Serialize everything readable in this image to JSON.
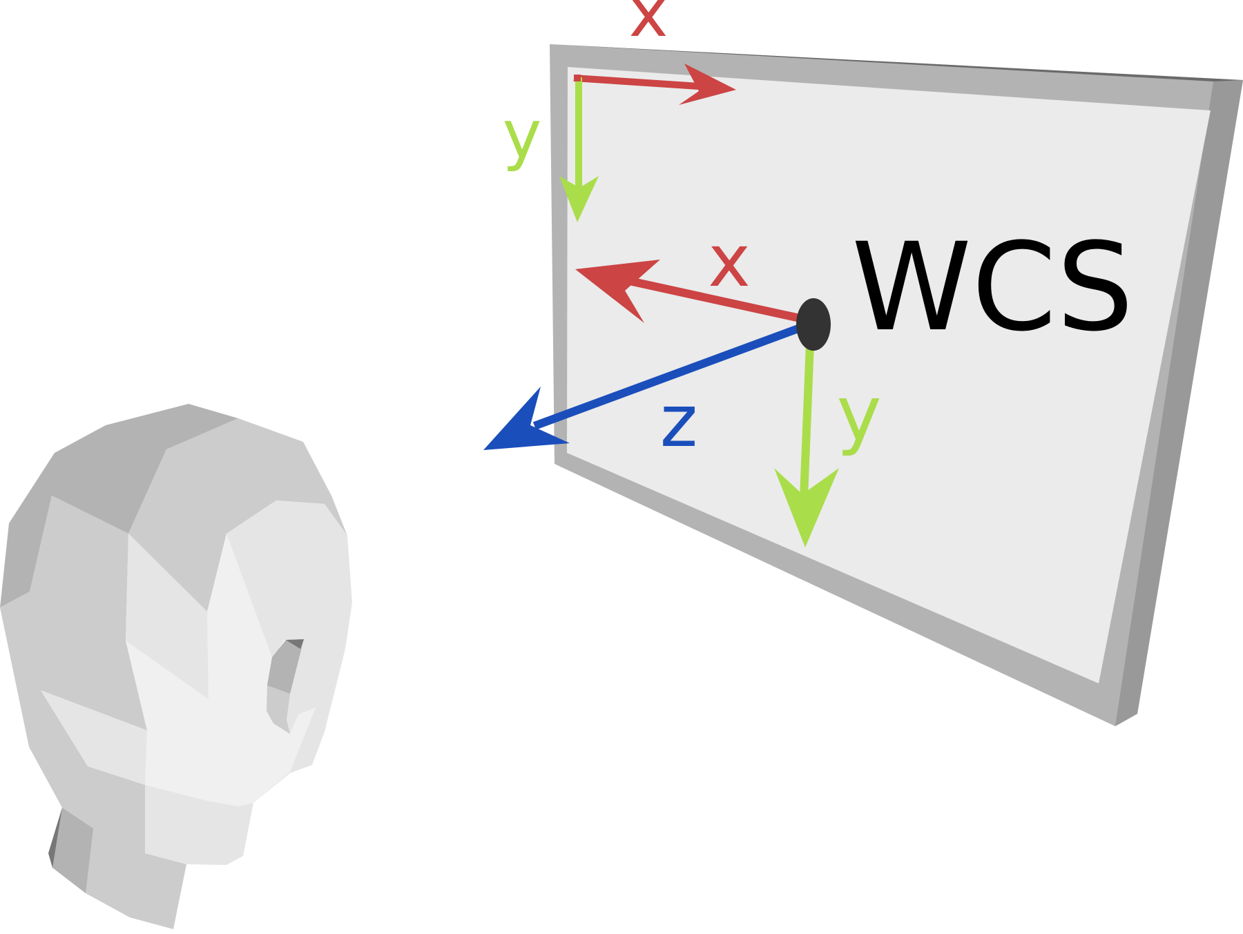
{
  "labels": {
    "screen_x": "x",
    "screen_y": "y",
    "world_x": "x",
    "world_y": "y",
    "world_z": "z",
    "system": "WCS"
  },
  "colors": {
    "x_axis": "#cc4444",
    "y_axis": "#aadd4a",
    "z_axis": "#1a4ebb",
    "origin": "#333333",
    "frame": "#b3b3b3",
    "frame_dark": "#999999",
    "screen": "#ebebeb",
    "head_light": "#f0f0f0",
    "head_mid": "#e5e5e5",
    "head_base": "#cccccc",
    "head_dark": "#b3b3b3",
    "text": "#000000"
  }
}
